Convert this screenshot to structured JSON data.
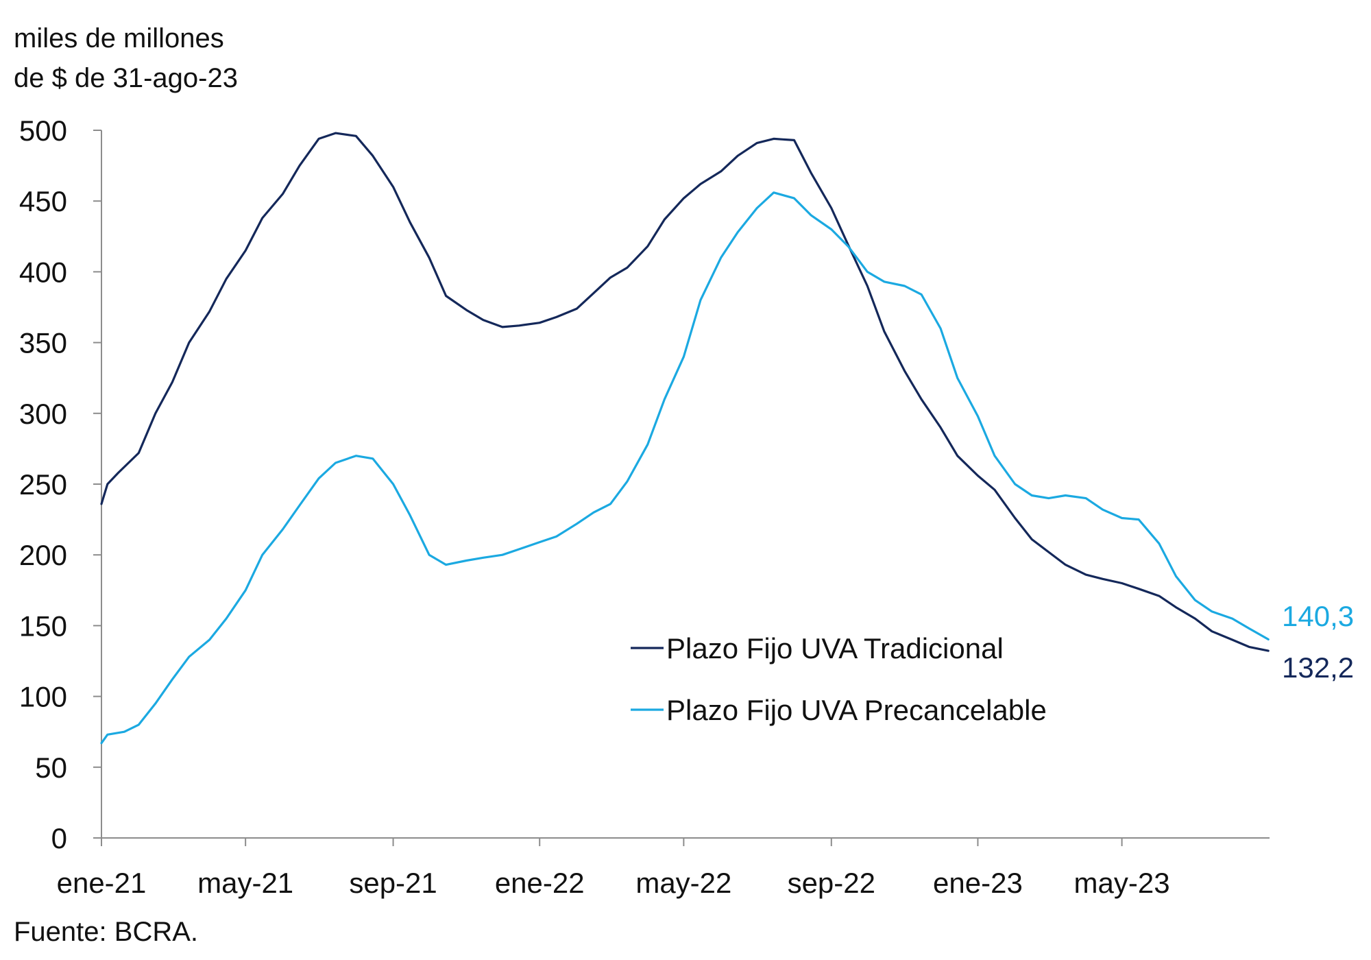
{
  "chart_data": {
    "type": "line",
    "unit_label": [
      "miles de millones",
      "de $ de 31-ago-23"
    ],
    "source": "Fuente: BCRA.",
    "xlim": [
      "2021-01-01",
      "2023-09-01"
    ],
    "ylim": [
      0,
      500
    ],
    "y_ticks": [
      0,
      50,
      100,
      150,
      200,
      250,
      300,
      350,
      400,
      450,
      500
    ],
    "y_tick_labels": [
      "0",
      "50",
      "100",
      "150",
      "200",
      "250",
      "300",
      "350",
      "400",
      "450",
      "500"
    ],
    "x_tick_labels": [
      {
        "date": "2021-01-01",
        "label": "ene-21"
      },
      {
        "date": "2021-05-01",
        "label": "may-21"
      },
      {
        "date": "2021-09-01",
        "label": "sep-21"
      },
      {
        "date": "2022-01-01",
        "label": "ene-22"
      },
      {
        "date": "2022-05-01",
        "label": "may-22"
      },
      {
        "date": "2022-09-01",
        "label": "sep-22"
      },
      {
        "date": "2023-01-01",
        "label": "ene-23"
      },
      {
        "date": "2023-05-01",
        "label": "may-23"
      }
    ],
    "legend_position": "center-right",
    "grid": false,
    "series": [
      {
        "name": "Plazo Fijo UVA Tradicional",
        "color": "#14285a",
        "end_label": "132,2",
        "points": [
          [
            "2021-01-01",
            236
          ],
          [
            "2021-01-06",
            250
          ],
          [
            "2021-01-15",
            258
          ],
          [
            "2021-02-01",
            272
          ],
          [
            "2021-02-15",
            300
          ],
          [
            "2021-03-01",
            322
          ],
          [
            "2021-03-15",
            350
          ],
          [
            "2021-04-01",
            372
          ],
          [
            "2021-04-15",
            395
          ],
          [
            "2021-05-01",
            415
          ],
          [
            "2021-05-15",
            438
          ],
          [
            "2021-06-01",
            455
          ],
          [
            "2021-06-15",
            475
          ],
          [
            "2021-07-01",
            494
          ],
          [
            "2021-07-15",
            498
          ],
          [
            "2021-08-01",
            496
          ],
          [
            "2021-08-15",
            482
          ],
          [
            "2021-09-01",
            460
          ],
          [
            "2021-09-15",
            435
          ],
          [
            "2021-10-01",
            410
          ],
          [
            "2021-10-15",
            383
          ],
          [
            "2021-11-01",
            373
          ],
          [
            "2021-11-15",
            366
          ],
          [
            "2021-12-01",
            361
          ],
          [
            "2021-12-15",
            362
          ],
          [
            "2022-01-01",
            364
          ],
          [
            "2022-01-15",
            368
          ],
          [
            "2022-02-01",
            374
          ],
          [
            "2022-02-15",
            385
          ],
          [
            "2022-03-01",
            396
          ],
          [
            "2022-03-15",
            403
          ],
          [
            "2022-04-01",
            418
          ],
          [
            "2022-04-15",
            437
          ],
          [
            "2022-05-01",
            452
          ],
          [
            "2022-05-15",
            462
          ],
          [
            "2022-06-01",
            471
          ],
          [
            "2022-06-15",
            482
          ],
          [
            "2022-07-01",
            491
          ],
          [
            "2022-07-15",
            494
          ],
          [
            "2022-08-01",
            493
          ],
          [
            "2022-08-15",
            470
          ],
          [
            "2022-09-01",
            445
          ],
          [
            "2022-09-15",
            419
          ],
          [
            "2022-10-01",
            390
          ],
          [
            "2022-10-15",
            358
          ],
          [
            "2022-11-01",
            330
          ],
          [
            "2022-11-15",
            310
          ],
          [
            "2022-12-01",
            290
          ],
          [
            "2022-12-15",
            270
          ],
          [
            "2023-01-01",
            256
          ],
          [
            "2023-01-15",
            246
          ],
          [
            "2023-02-01",
            226
          ],
          [
            "2023-02-15",
            211
          ],
          [
            "2023-03-01",
            202
          ],
          [
            "2023-03-15",
            193
          ],
          [
            "2023-04-01",
            186
          ],
          [
            "2023-04-15",
            183
          ],
          [
            "2023-05-01",
            180
          ],
          [
            "2023-05-15",
            176
          ],
          [
            "2023-06-01",
            171
          ],
          [
            "2023-06-15",
            163
          ],
          [
            "2023-07-01",
            155
          ],
          [
            "2023-07-15",
            146
          ],
          [
            "2023-08-01",
            140
          ],
          [
            "2023-08-15",
            135
          ],
          [
            "2023-08-31",
            132.2
          ]
        ]
      },
      {
        "name": "Plazo Fijo UVA Precancelable",
        "color": "#1ba9e1",
        "end_label": "140,3",
        "points": [
          [
            "2021-01-01",
            67
          ],
          [
            "2021-01-06",
            73
          ],
          [
            "2021-01-20",
            75
          ],
          [
            "2021-02-01",
            80
          ],
          [
            "2021-02-15",
            95
          ],
          [
            "2021-03-01",
            112
          ],
          [
            "2021-03-15",
            128
          ],
          [
            "2021-04-01",
            140
          ],
          [
            "2021-04-15",
            155
          ],
          [
            "2021-05-01",
            175
          ],
          [
            "2021-05-15",
            200
          ],
          [
            "2021-06-01",
            218
          ],
          [
            "2021-06-15",
            235
          ],
          [
            "2021-07-01",
            254
          ],
          [
            "2021-07-15",
            265
          ],
          [
            "2021-08-01",
            270
          ],
          [
            "2021-08-15",
            268
          ],
          [
            "2021-09-01",
            250
          ],
          [
            "2021-09-15",
            228
          ],
          [
            "2021-10-01",
            200
          ],
          [
            "2021-10-15",
            193
          ],
          [
            "2021-11-01",
            196
          ],
          [
            "2021-11-15",
            198
          ],
          [
            "2021-12-01",
            200
          ],
          [
            "2021-12-15",
            204
          ],
          [
            "2022-01-01",
            209
          ],
          [
            "2022-01-15",
            213
          ],
          [
            "2022-02-01",
            222
          ],
          [
            "2022-02-15",
            230
          ],
          [
            "2022-03-01",
            236
          ],
          [
            "2022-03-15",
            252
          ],
          [
            "2022-04-01",
            278
          ],
          [
            "2022-04-15",
            310
          ],
          [
            "2022-05-01",
            340
          ],
          [
            "2022-05-15",
            380
          ],
          [
            "2022-06-01",
            410
          ],
          [
            "2022-06-15",
            428
          ],
          [
            "2022-07-01",
            445
          ],
          [
            "2022-07-15",
            456
          ],
          [
            "2022-08-01",
            452
          ],
          [
            "2022-08-15",
            440
          ],
          [
            "2022-09-01",
            430
          ],
          [
            "2022-09-15",
            418
          ],
          [
            "2022-10-01",
            400
          ],
          [
            "2022-10-15",
            393
          ],
          [
            "2022-11-01",
            390
          ],
          [
            "2022-11-15",
            384
          ],
          [
            "2022-12-01",
            360
          ],
          [
            "2022-12-15",
            325
          ],
          [
            "2023-01-01",
            298
          ],
          [
            "2023-01-15",
            270
          ],
          [
            "2023-02-01",
            250
          ],
          [
            "2023-02-15",
            242
          ],
          [
            "2023-03-01",
            240
          ],
          [
            "2023-03-15",
            242
          ],
          [
            "2023-04-01",
            240
          ],
          [
            "2023-04-15",
            232
          ],
          [
            "2023-05-01",
            226
          ],
          [
            "2023-05-15",
            225
          ],
          [
            "2023-06-01",
            208
          ],
          [
            "2023-06-15",
            185
          ],
          [
            "2023-07-01",
            168
          ],
          [
            "2023-07-15",
            160
          ],
          [
            "2023-08-01",
            155
          ],
          [
            "2023-08-15",
            148
          ],
          [
            "2023-08-31",
            140.3
          ]
        ]
      }
    ]
  }
}
